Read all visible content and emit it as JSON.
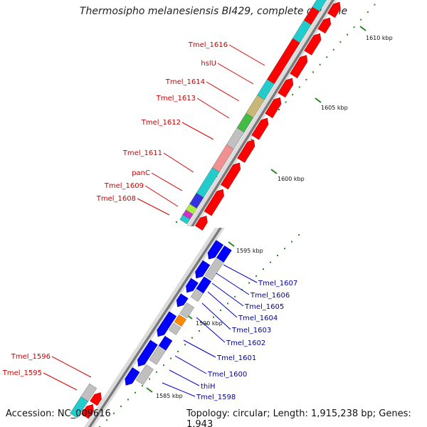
{
  "title": "Thermosipho melanesiensis BI429, complete genome",
  "footer": {
    "accession": "Accession: NC_009616",
    "topology": "Topology: circular; Length: 1,915,238 bp; Genes: 1,943"
  },
  "scale_labels": [
    "1610 kbp",
    "1605 kbp",
    "1600 kbp",
    "1595 kbp",
    "1590 kbp",
    "1585 kbp"
  ],
  "gene_labels_left": [
    "Tmel_1616",
    "hslU",
    "Tmel_1614",
    "Tmel_1613",
    "Tmel_1612",
    "Tmel_1611",
    "panC",
    "Tmel_1609",
    "Tmel_1608",
    "Tmel_1596",
    "Tmel_1595"
  ],
  "gene_labels_right": [
    "Tmel_1607",
    "Tmel_1606",
    "Tmel_1605",
    "Tmel_1604",
    "Tmel_1603",
    "Tmel_1602",
    "Tmel_1601",
    "Tmel_1600",
    "thiH",
    "Tmel_1598"
  ],
  "colors": {
    "forward_label": "#cc0000",
    "reverse_label": "#000099",
    "forward_gene": "#ff0000",
    "reverse_gene": "#0000ff",
    "cds_cyan": "#22cccc",
    "cds_gray": "#c0c0c0",
    "cds_olive": "#c8b878",
    "cds_green": "#44bb44",
    "cds_pink": "#f09090",
    "cds_orange": "#ff8800",
    "tick": "#228822"
  }
}
